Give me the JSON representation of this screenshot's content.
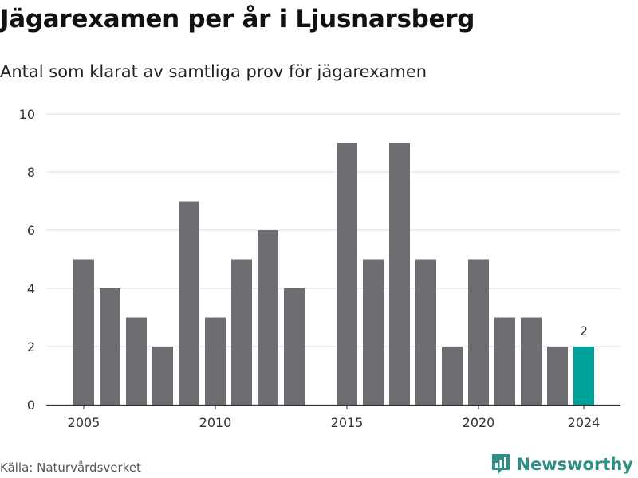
{
  "title": "Jägarexamen per år i Ljusnarsberg",
  "subtitle": "Antal som klarat av samtliga prov för jägarexamen",
  "source": "Källa: Naturvårdsverket",
  "brand": {
    "name": "Newsworthy",
    "icon": "bar-chart-logo-icon"
  },
  "colors": {
    "bar": "#6e6d72",
    "highlight": "#00a19a",
    "grid": "#dddddd",
    "axis": "#333333",
    "brand": "#2e8f86"
  },
  "chart_data": {
    "type": "bar",
    "x": [
      2005,
      2006,
      2007,
      2008,
      2009,
      2010,
      2011,
      2012,
      2013,
      2014,
      2015,
      2016,
      2017,
      2018,
      2019,
      2020,
      2021,
      2022,
      2023,
      2024
    ],
    "values": [
      5,
      4,
      3,
      2,
      7,
      3,
      5,
      6,
      4,
      0,
      9,
      5,
      9,
      5,
      2,
      5,
      3,
      3,
      2,
      2
    ],
    "x_ticks": [
      2005,
      2010,
      2015,
      2020,
      2024
    ],
    "y_ticks": [
      0,
      2,
      4,
      6,
      8,
      10
    ],
    "ylim": [
      0,
      10
    ],
    "highlight": {
      "x": 2024,
      "label": "2"
    },
    "grid": true
  }
}
